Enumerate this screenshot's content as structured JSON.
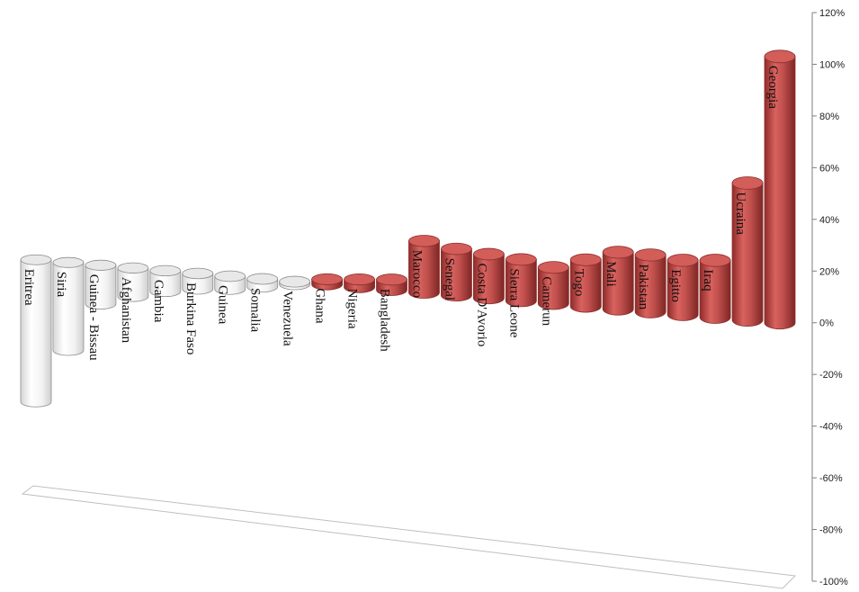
{
  "chart_data": {
    "type": "bar",
    "style": "3d-cylinder",
    "title": "",
    "xlabel": "",
    "ylabel": "",
    "ylim": [
      -100,
      120
    ],
    "y_tick_step": 20,
    "y_tick_suffix": "%",
    "grid": false,
    "legend": "none",
    "categories": [
      "Eritrea",
      "Siria",
      "Guinea - Bissau",
      "Afghanistan",
      "Gambia",
      "Burkina Faso",
      "Guinea",
      "Somalia",
      "Venezuela",
      "Ghana",
      "Nigeria",
      "Bangladesh",
      "Marocco",
      "Senegal",
      "Costa D'Avorio",
      "Sierra Leone",
      "Camerun",
      "Togo",
      "Mali",
      "Pakistan",
      "Egitto",
      "Iraq",
      "Ucraina",
      "Georgia"
    ],
    "values": [
      -55,
      -34,
      -15,
      -11,
      -8,
      -6,
      -5,
      -3,
      -1,
      2,
      3,
      4,
      20,
      18,
      17,
      16,
      14,
      18,
      22,
      22,
      21,
      22,
      53,
      103
    ],
    "colors": {
      "negative": "#f4f4f4",
      "positive": "#c0504d",
      "negative_stroke": "#8c8c8c",
      "positive_stroke": "#8a2f2d"
    }
  }
}
